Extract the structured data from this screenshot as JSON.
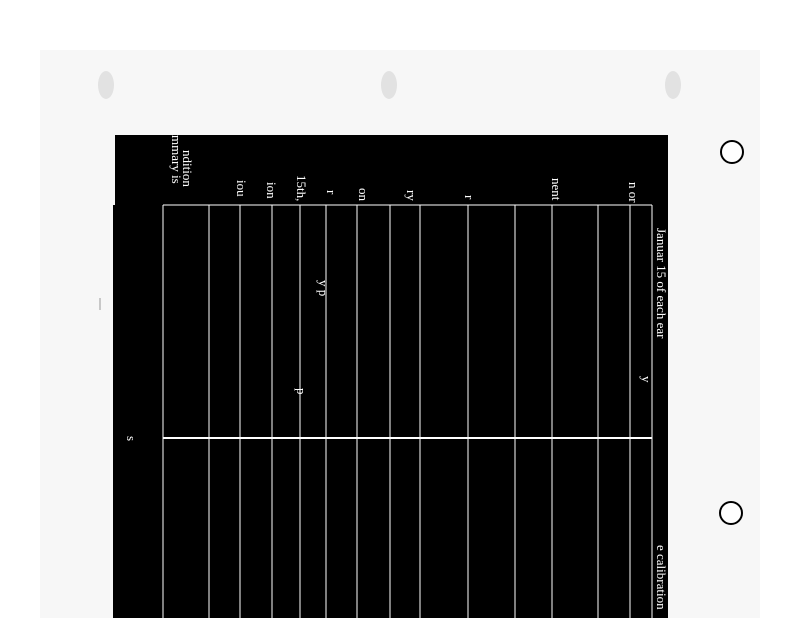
{
  "document": {
    "texts": [
      "mmary is",
      "ndition",
      "iou",
      "ion",
      "15th,",
      "r",
      "on",
      "ry",
      "r",
      "nent",
      "n or",
      "Januar  15 of each  ear",
      "e calibration",
      "s",
      "y",
      "p",
      "y  p"
    ]
  }
}
